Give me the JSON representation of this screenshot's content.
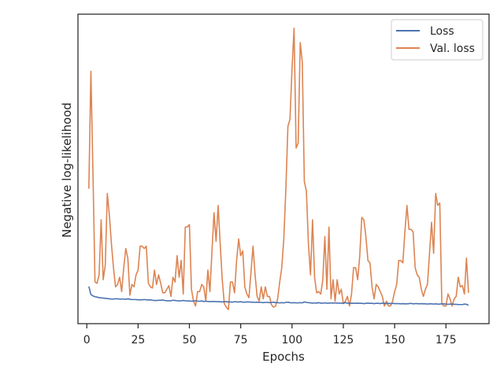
{
  "colors": {
    "loss": "#4c72b0",
    "val_loss": "#dd8452",
    "axes": "#262626"
  },
  "chart_data": {
    "type": "line",
    "title": "",
    "xlabel": "Epochs",
    "ylabel": "Negative log-likelihood",
    "xlim": [
      -4.3,
      196
    ],
    "xticks": [
      0,
      25,
      50,
      75,
      100,
      125,
      150,
      175
    ],
    "yticks_shown": false,
    "grid": false,
    "legend_position": "top-right",
    "series": [
      {
        "name": "Loss",
        "color": "#4c72b0",
        "x": [
          1,
          2,
          3,
          4,
          5,
          6,
          7,
          8,
          9,
          10,
          11,
          12,
          13,
          14,
          15,
          16,
          17,
          18,
          19,
          20,
          21,
          22,
          23,
          24,
          25,
          26,
          27,
          28,
          29,
          30,
          31,
          32,
          33,
          34,
          35,
          36,
          37,
          38,
          39,
          40,
          41,
          42,
          43,
          44,
          45,
          46,
          47,
          48,
          49,
          50,
          51,
          52,
          53,
          54,
          55,
          56,
          57,
          58,
          59,
          60,
          61,
          62,
          63,
          64,
          65,
          66,
          67,
          68,
          69,
          70,
          71,
          72,
          73,
          74,
          75,
          76,
          77,
          78,
          79,
          80,
          81,
          82,
          83,
          84,
          85,
          86,
          87,
          88,
          89,
          90,
          91,
          92,
          93,
          94,
          95,
          96,
          97,
          98,
          99,
          100,
          101,
          102,
          103,
          104,
          105,
          106,
          107,
          108,
          109,
          110,
          111,
          112,
          113,
          114,
          115,
          116,
          117,
          118,
          119,
          120,
          121,
          122,
          123,
          124,
          125,
          126,
          127,
          128,
          129,
          130,
          131,
          132,
          133,
          134,
          135,
          136,
          137,
          138,
          139,
          140,
          141,
          142,
          143,
          144,
          145,
          146,
          147,
          148,
          149,
          150,
          151,
          152,
          153,
          154,
          155,
          156,
          157,
          158,
          159,
          160,
          161,
          162,
          163,
          164,
          165,
          166,
          167,
          168,
          169,
          170,
          171,
          172,
          173,
          174,
          175,
          176,
          177,
          178,
          179,
          180,
          181,
          182,
          183,
          184,
          185,
          186
        ],
        "y": [
          1.22,
          0.88,
          0.82,
          0.79,
          0.77,
          0.75,
          0.74,
          0.73,
          0.72,
          0.71,
          0.7,
          0.69,
          0.69,
          0.7,
          0.7,
          0.69,
          0.69,
          0.69,
          0.68,
          0.7,
          0.68,
          0.67,
          0.67,
          0.67,
          0.66,
          0.66,
          0.66,
          0.67,
          0.66,
          0.65,
          0.66,
          0.64,
          0.63,
          0.63,
          0.64,
          0.64,
          0.65,
          0.63,
          0.62,
          0.62,
          0.62,
          0.64,
          0.63,
          0.62,
          0.61,
          0.62,
          0.63,
          0.62,
          0.61,
          0.61,
          0.6,
          0.61,
          0.62,
          0.6,
          0.6,
          0.61,
          0.59,
          0.6,
          0.59,
          0.58,
          0.59,
          0.59,
          0.58,
          0.58,
          0.58,
          0.57,
          0.58,
          0.58,
          0.57,
          0.57,
          0.56,
          0.58,
          0.57,
          0.57,
          0.58,
          0.56,
          0.56,
          0.57,
          0.57,
          0.56,
          0.56,
          0.55,
          0.56,
          0.55,
          0.55,
          0.54,
          0.55,
          0.55,
          0.54,
          0.55,
          0.56,
          0.54,
          0.54,
          0.53,
          0.54,
          0.53,
          0.55,
          0.56,
          0.54,
          0.53,
          0.54,
          0.53,
          0.53,
          0.54,
          0.53,
          0.57,
          0.55,
          0.54,
          0.53,
          0.52,
          0.53,
          0.52,
          0.54,
          0.52,
          0.52,
          0.53,
          0.52,
          0.52,
          0.53,
          0.52,
          0.53,
          0.52,
          0.52,
          0.52,
          0.51,
          0.54,
          0.52,
          0.51,
          0.52,
          0.51,
          0.51,
          0.52,
          0.51,
          0.51,
          0.5,
          0.51,
          0.52,
          0.51,
          0.51,
          0.5,
          0.51,
          0.51,
          0.5,
          0.52,
          0.51,
          0.5,
          0.51,
          0.5,
          0.51,
          0.5,
          0.5,
          0.5,
          0.49,
          0.5,
          0.49,
          0.49,
          0.5,
          0.51,
          0.49,
          0.5,
          0.5,
          0.49,
          0.5,
          0.49,
          0.49,
          0.48,
          0.49,
          0.49,
          0.48,
          0.49,
          0.48,
          0.48,
          0.49,
          0.49,
          0.48,
          0.47,
          0.48,
          0.48,
          0.47,
          0.47,
          0.46,
          0.46,
          0.46,
          0.48,
          0.47,
          0.43
        ]
      },
      {
        "name": "Val. loss",
        "color": "#dd8452",
        "x": [
          1,
          2,
          3,
          4,
          5,
          6,
          7,
          8,
          9,
          10,
          11,
          12,
          13,
          14,
          15,
          16,
          17,
          18,
          19,
          20,
          21,
          22,
          23,
          24,
          25,
          26,
          27,
          28,
          29,
          30,
          31,
          32,
          33,
          34,
          35,
          36,
          37,
          38,
          39,
          40,
          41,
          42,
          43,
          44,
          45,
          46,
          47,
          48,
          49,
          50,
          51,
          52,
          53,
          54,
          55,
          56,
          57,
          58,
          59,
          60,
          61,
          62,
          63,
          64,
          65,
          66,
          67,
          68,
          69,
          70,
          71,
          72,
          73,
          74,
          75,
          76,
          77,
          78,
          79,
          80,
          81,
          82,
          83,
          84,
          85,
          86,
          87,
          88,
          89,
          90,
          91,
          92,
          93,
          94,
          95,
          96,
          97,
          98,
          99,
          100,
          101,
          102,
          103,
          104,
          105,
          106,
          107,
          108,
          109,
          110,
          111,
          112,
          113,
          114,
          115,
          116,
          117,
          118,
          119,
          120,
          121,
          122,
          123,
          124,
          125,
          126,
          127,
          128,
          129,
          130,
          131,
          132,
          133,
          134,
          135,
          136,
          137,
          138,
          139,
          140,
          141,
          142,
          143,
          144,
          145,
          146,
          147,
          148,
          149,
          150,
          151,
          152,
          153,
          154,
          155,
          156,
          157,
          158,
          159,
          160,
          161,
          162,
          163,
          164,
          165,
          166,
          167,
          168,
          169,
          170,
          171,
          172,
          173,
          174,
          175,
          176,
          177,
          178,
          179,
          180,
          181,
          182,
          183,
          184,
          185,
          186
        ],
        "y": [
          5.3,
          10.2,
          6.0,
          1.4,
          1.35,
          1.7,
          4.0,
          1.5,
          2.1,
          5.1,
          4.2,
          3.0,
          2.0,
          1.2,
          1.3,
          1.6,
          1.0,
          2.0,
          2.8,
          2.4,
          0.85,
          1.3,
          1.2,
          1.7,
          1.9,
          2.9,
          2.9,
          2.8,
          2.9,
          1.35,
          1.2,
          1.15,
          1.9,
          1.3,
          1.7,
          1.35,
          0.95,
          0.95,
          1.1,
          1.25,
          0.8,
          1.6,
          1.4,
          2.5,
          1.6,
          2.3,
          0.9,
          3.7,
          3.7,
          3.8,
          1.1,
          0.6,
          0.4,
          1.0,
          1.0,
          1.3,
          1.2,
          0.6,
          1.9,
          1.0,
          2.7,
          4.3,
          3.1,
          4.6,
          3.0,
          1.5,
          0.5,
          0.35,
          0.25,
          1.4,
          1.4,
          0.95,
          2.3,
          3.2,
          2.5,
          2.7,
          1.2,
          0.9,
          0.75,
          1.8,
          2.9,
          1.7,
          0.8,
          0.6,
          1.2,
          0.7,
          1.2,
          0.8,
          0.8,
          0.45,
          0.35,
          0.4,
          0.7,
          1.4,
          2.0,
          3.2,
          5.3,
          7.9,
          8.2,
          10.3,
          12.0,
          7.0,
          7.2,
          11.4,
          10.6,
          5.6,
          5.2,
          3.0,
          1.7,
          4.0,
          1.6,
          0.95,
          1.0,
          0.9,
          1.5,
          3.3,
          1.1,
          3.7,
          0.7,
          1.5,
          0.6,
          1.5,
          0.9,
          1.1,
          0.5,
          0.6,
          0.8,
          0.4,
          0.9,
          2.0,
          2.0,
          1.5,
          2.5,
          4.1,
          4.0,
          3.3,
          2.3,
          2.2,
          1.2,
          0.7,
          1.3,
          1.2,
          1.0,
          0.8,
          0.4,
          0.6,
          0.4,
          0.4,
          0.6,
          1.0,
          1.3,
          2.3,
          2.3,
          2.2,
          3.5,
          4.6,
          3.6,
          3.6,
          3.5,
          2.0,
          1.7,
          1.6,
          1.1,
          0.8,
          1.1,
          1.3,
          2.6,
          3.9,
          2.6,
          5.1,
          4.6,
          4.7,
          0.5,
          0.4,
          0.4,
          0.9,
          0.7,
          0.4,
          0.7,
          0.8,
          1.6,
          1.2,
          1.25,
          0.9,
          2.4,
          0.95
        ]
      }
    ]
  }
}
